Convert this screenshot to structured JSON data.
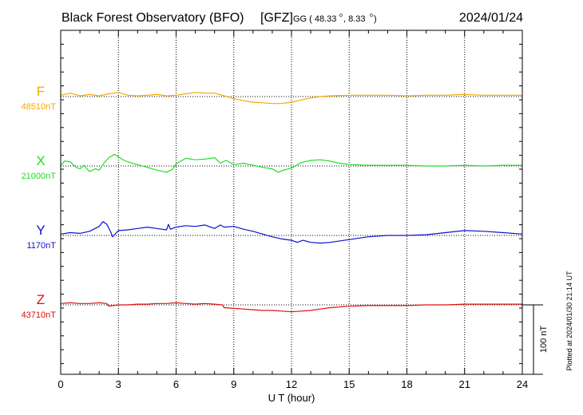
{
  "header": {
    "station": "Black Forest Observatory (BFO)",
    "agency": "[GFZ]",
    "coords_prefix": "GG ( 48.33",
    "coords_mid": ",   8.33",
    "coords_suffix": ")",
    "date": "2024/01/24"
  },
  "footer": {
    "plotted_note": "Plotted at 2024/01/30 21:14 UT"
  },
  "scale_bar": {
    "label": "100 nT",
    "value_nT": 100
  },
  "chart_data": {
    "type": "line",
    "xlabel": "U T (hour)",
    "xlim": [
      0,
      24
    ],
    "xticks": [
      "0",
      "3",
      "6",
      "9",
      "12",
      "15",
      "18",
      "21",
      "24"
    ],
    "grid": true,
    "series": [
      {
        "name": "F",
        "baseline_label": "48510nT",
        "color": "#f4a800",
        "baseline_nT": 48510,
        "x": [
          0,
          0.5,
          1,
          1.5,
          2,
          2.5,
          3,
          3.5,
          4,
          4.5,
          5,
          5.5,
          6,
          6.5,
          7,
          7.5,
          8,
          8.5,
          9,
          9.5,
          10,
          10.5,
          11,
          11.5,
          12,
          12.5,
          13,
          13.5,
          14,
          15,
          16,
          17,
          18,
          19,
          20,
          21,
          22,
          23,
          24
        ],
        "y": [
          48512,
          48515,
          48511,
          48513,
          48511,
          48514,
          48516,
          48512,
          48511,
          48512,
          48513,
          48511,
          48512,
          48514,
          48516,
          48515,
          48515,
          48511,
          48507,
          48504,
          48502,
          48501,
          48500,
          48500,
          48502,
          48505,
          48508,
          48510,
          48511,
          48512,
          48512,
          48512,
          48511,
          48512,
          48512,
          48513,
          48512,
          48512,
          48512
        ]
      },
      {
        "name": "X",
        "baseline_label": "21000nT",
        "color": "#22dd22",
        "baseline_nT": 21000,
        "x": [
          0,
          0.2,
          0.5,
          0.8,
          1,
          1.2,
          1.5,
          1.8,
          2,
          2.3,
          2.5,
          2.8,
          3,
          3.3,
          3.6,
          4,
          4.5,
          5,
          5.5,
          5.8,
          6,
          6.5,
          7,
          7.5,
          8,
          8.3,
          8.6,
          9,
          9.5,
          10,
          10.5,
          11,
          11.3,
          11.6,
          12,
          12.5,
          13,
          13.5,
          14,
          14.5,
          15,
          16,
          17,
          18,
          19,
          20,
          21,
          22,
          23,
          24
        ],
        "y": [
          21000,
          21007,
          21006,
          20998,
          20996,
          21001,
          20992,
          20996,
          20994,
          21006,
          21012,
          21017,
          21013,
          21008,
          21005,
          21002,
          20998,
          20994,
          20991,
          20995,
          21003,
          21011,
          21009,
          21010,
          21012,
          21004,
          21008,
          21002,
          21004,
          21001,
          20998,
          20996,
          20991,
          20994,
          20997,
          21005,
          21008,
          21009,
          21007,
          21004,
          21002,
          21001,
          21001,
          21001,
          21000,
          21000,
          21001,
          21000,
          21001,
          21001
        ]
      },
      {
        "name": "Y",
        "baseline_label": "1170nT",
        "color": "#1010d0",
        "baseline_nT": 1170,
        "x": [
          0,
          0.5,
          1,
          1.5,
          2,
          2.2,
          2.4,
          2.6,
          2.7,
          3,
          3.5,
          4,
          4.5,
          5,
          5.5,
          5.6,
          5.7,
          6,
          6.5,
          7,
          7.5,
          8,
          8.3,
          8.5,
          9,
          9.5,
          10,
          10.5,
          11,
          11.5,
          12,
          12.3,
          12.6,
          13,
          13.5,
          14,
          15,
          16,
          17,
          18,
          19,
          20,
          21,
          22,
          23,
          24
        ],
        "y": [
          1172,
          1174,
          1173,
          1176,
          1183,
          1190,
          1186,
          1175,
          1168,
          1177,
          1178,
          1180,
          1182,
          1180,
          1178,
          1186,
          1179,
          1182,
          1184,
          1183,
          1185,
          1180,
          1185,
          1182,
          1183,
          1179,
          1176,
          1172,
          1168,
          1165,
          1163,
          1160,
          1163,
          1160,
          1159,
          1160,
          1164,
          1168,
          1170,
          1170,
          1171,
          1174,
          1177,
          1176,
          1174,
          1172
        ]
      },
      {
        "name": "Z",
        "baseline_label": "43710nT",
        "color": "#dd1010",
        "baseline_nT": 43710,
        "x": [
          0,
          0.5,
          1,
          1.5,
          2,
          2.4,
          2.5,
          3,
          3.5,
          4,
          4.5,
          5,
          5.5,
          6,
          6.5,
          7,
          7.5,
          8,
          8.4,
          8.5,
          9,
          9.5,
          10,
          10.5,
          11,
          11.5,
          12,
          12.5,
          13,
          13.5,
          14,
          15,
          16,
          17,
          18,
          19,
          20,
          21,
          22,
          23,
          24
        ],
        "y": [
          43712,
          43713,
          43712,
          43712,
          43713,
          43712,
          43708,
          43710,
          43710,
          43711,
          43711,
          43712,
          43712,
          43713,
          43712,
          43711,
          43712,
          43711,
          43710,
          43706,
          43705,
          43704,
          43703,
          43702,
          43702,
          43701,
          43700,
          43701,
          43702,
          43704,
          43706,
          43708,
          43709,
          43709,
          43709,
          43710,
          43710,
          43711,
          43711,
          43711,
          43711
        ]
      }
    ]
  }
}
